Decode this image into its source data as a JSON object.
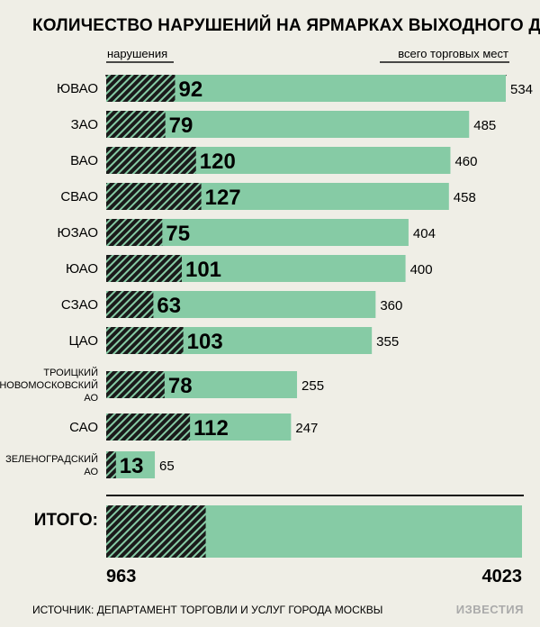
{
  "chart_data": {
    "type": "bar",
    "title": "КОЛИЧЕСТВО НАРУШЕНИЙ НА ЯРМАРКАХ ВЫХОДНОГО ДНЯ",
    "series_labels": {
      "violations": "нарушения",
      "total": "всего торговых мест"
    },
    "categories": [
      [
        "ЮВАО"
      ],
      [
        "ЗАО"
      ],
      [
        "ВАО"
      ],
      [
        "СВАО"
      ],
      [
        "ЮЗАО"
      ],
      [
        "ЮАО"
      ],
      [
        "СЗАО"
      ],
      [
        "ЦАО"
      ],
      [
        "ТРОИЦКИЙ",
        "НОВОМОСКОВСКИЙ",
        "АО"
      ],
      [
        "САО"
      ],
      [
        "ЗЕЛЕНОГРАДСКИЙ",
        "АО"
      ]
    ],
    "series": [
      {
        "name": "нарушения",
        "values": [
          92,
          79,
          120,
          127,
          75,
          101,
          63,
          103,
          78,
          112,
          13
        ]
      },
      {
        "name": "всего торговых мест",
        "values": [
          534,
          485,
          460,
          458,
          404,
          400,
          360,
          355,
          255,
          247,
          65
        ]
      }
    ],
    "summary": {
      "label": "ИТОГО:",
      "violations": 963,
      "total": 4023
    },
    "colors": {
      "total_bar": "#86cba5",
      "violation_bar": "#1a1a1a",
      "hatch": "#86cba5",
      "background": "#efeee6"
    }
  },
  "source": "ИСТОЧНИК: ДЕПАРТАМЕНТ ТОРГОВЛИ И УСЛУГ ГОРОДА МОСКВЫ",
  "logo": "ИЗВЕСТИЯ"
}
